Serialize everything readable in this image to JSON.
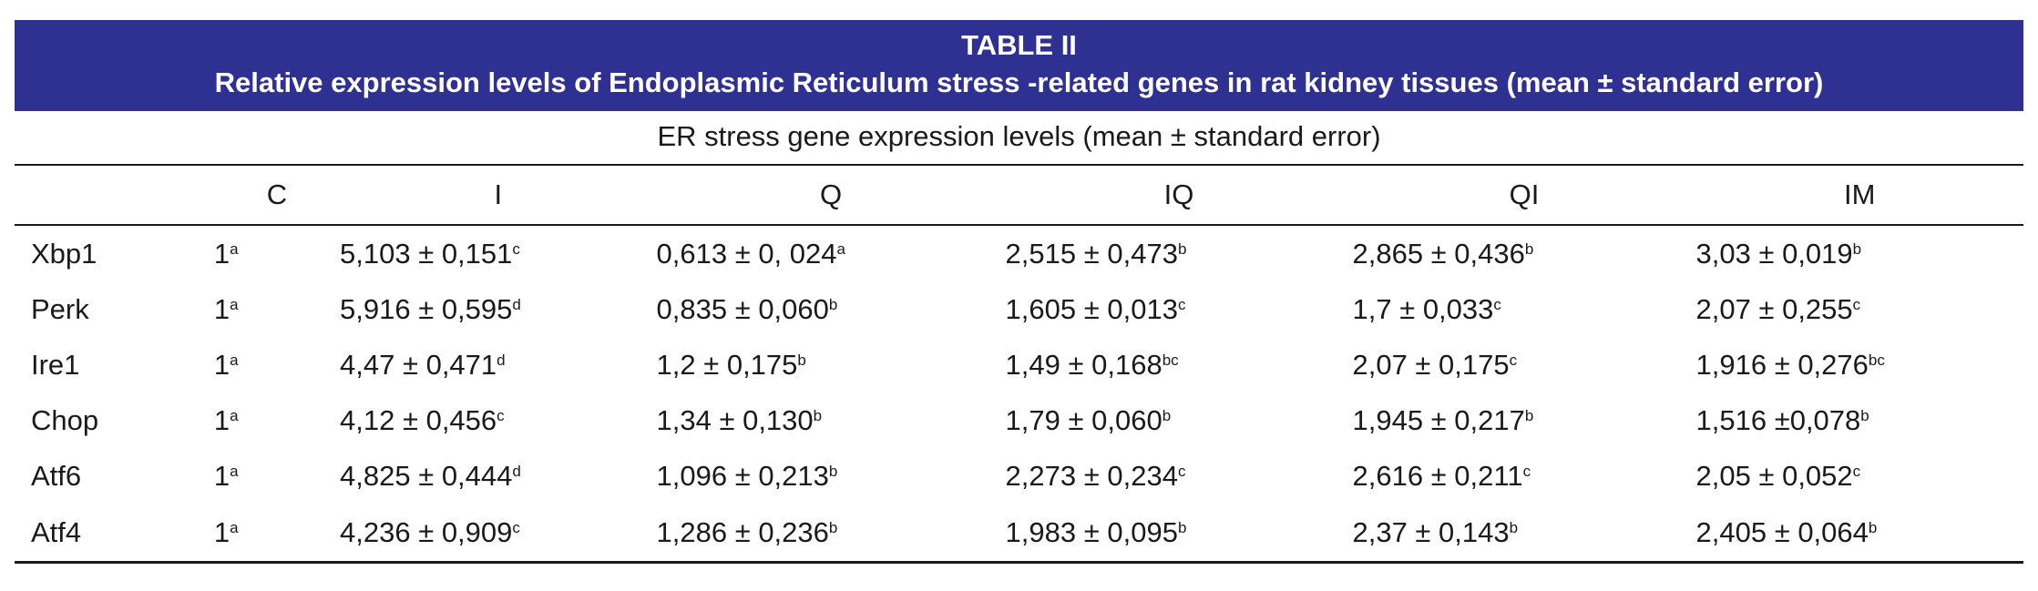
{
  "table": {
    "title": "TABLE II",
    "subtitle": "Relative expression levels of Endoplasmic Reticulum stress -related genes in rat kidney tissues (mean ± standard error)",
    "group_header": "ER stress gene expression levels (mean ± standard error)",
    "columns": [
      "",
      "C",
      "I",
      "Q",
      "IQ",
      "QI",
      "IM"
    ],
    "rows": [
      {
        "gene": "Xbp1",
        "cells": [
          {
            "v": "1",
            "s": "a"
          },
          {
            "v": "5,103 ± 0,151",
            "s": "c"
          },
          {
            "v": "0,613 ± 0, 024",
            "s": "a"
          },
          {
            "v": "2,515 ± 0,473",
            "s": "b"
          },
          {
            "v": "2,865 ± 0,436",
            "s": "b"
          },
          {
            "v": "3,03 ± 0,019",
            "s": "b"
          }
        ]
      },
      {
        "gene": "Perk",
        "cells": [
          {
            "v": "1",
            "s": "a"
          },
          {
            "v": "5,916 ± 0,595",
            "s": "d"
          },
          {
            "v": "0,835 ± 0,060",
            "s": "b"
          },
          {
            "v": "1,605 ± 0,013",
            "s": "c"
          },
          {
            "v": "1,7 ± 0,033",
            "s": "c"
          },
          {
            "v": "2,07 ± 0,255",
            "s": "c"
          }
        ]
      },
      {
        "gene": "Ire1",
        "cells": [
          {
            "v": "1",
            "s": "a"
          },
          {
            "v": "4,47 ± 0,471",
            "s": "d"
          },
          {
            "v": "1,2 ± 0,175",
            "s": "b"
          },
          {
            "v": "1,49 ± 0,168",
            "s": "bc"
          },
          {
            "v": "2,07 ± 0,175",
            "s": "c"
          },
          {
            "v": "1,916 ± 0,276",
            "s": "bc"
          }
        ]
      },
      {
        "gene": "Chop",
        "cells": [
          {
            "v": "1",
            "s": "a"
          },
          {
            "v": "4,12 ± 0,456",
            "s": "c"
          },
          {
            "v": "1,34 ± 0,130",
            "s": "b"
          },
          {
            "v": "1,79 ± 0,060",
            "s": "b"
          },
          {
            "v": "1,945 ± 0,217",
            "s": "b"
          },
          {
            "v": "1,516 ±0,078",
            "s": "b"
          }
        ]
      },
      {
        "gene": "Atf6",
        "cells": [
          {
            "v": "1",
            "s": "a"
          },
          {
            "v": "4,825 ± 0,444",
            "s": "d"
          },
          {
            "v": "1,096 ± 0,213",
            "s": "b"
          },
          {
            "v": "2,273 ± 0,234",
            "s": "c"
          },
          {
            "v": "2,616 ± 0,211",
            "s": "c"
          },
          {
            "v": "2,05 ± 0,052",
            "s": "c"
          }
        ]
      },
      {
        "gene": "Atf4",
        "cells": [
          {
            "v": "1",
            "s": "a"
          },
          {
            "v": "4,236 ± 0,909",
            "s": "c"
          },
          {
            "v": "1,286 ± 0,236",
            "s": "b"
          },
          {
            "v": "1,983 ± 0,095",
            "s": "b"
          },
          {
            "v": "2,37 ± 0,143",
            "s": "b"
          },
          {
            "v": "2,405 ± 0,064",
            "s": "b"
          }
        ]
      }
    ]
  },
  "colors": {
    "header_band": "#2e3192",
    "header_text": "#ffffff",
    "rule": "#1a1a1a"
  }
}
